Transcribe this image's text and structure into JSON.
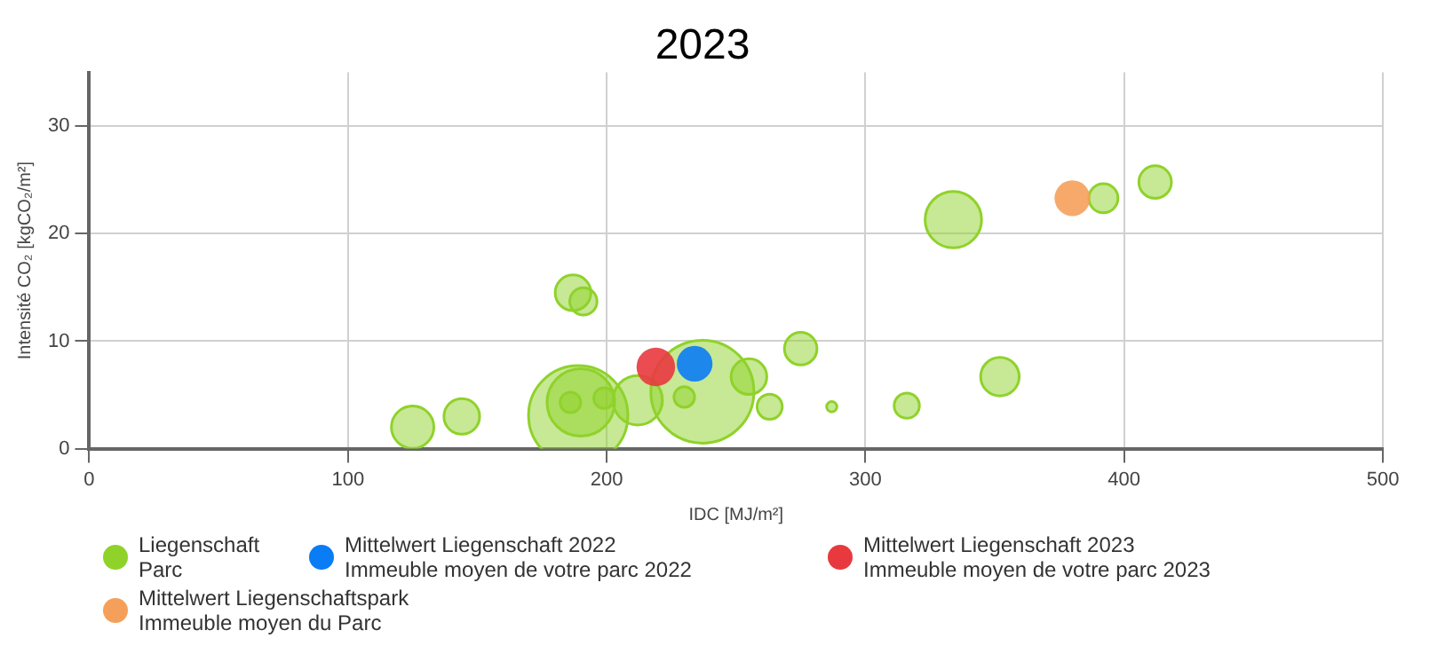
{
  "chart_data": {
    "type": "bubble",
    "title": "2023",
    "xlabel": "IDC [MJ/m²]",
    "ylabel": "Intensité CO₂ [kgCO₂/m²]",
    "xlim": [
      0,
      500
    ],
    "xticks": [
      0,
      100,
      200,
      300,
      400,
      500
    ],
    "ylim": [
      0,
      35
    ],
    "yticks": [
      0,
      10,
      20,
      30
    ],
    "grid": true,
    "legend": "bottom",
    "series": [
      {
        "name": "Liegenschaft\nParc",
        "color": "#8fd22a",
        "x": [
          125,
          144,
          187,
          191,
          189,
          190,
          186,
          199,
          212,
          237,
          230,
          255,
          263,
          287,
          275,
          316,
          352,
          334,
          392,
          412
        ],
        "values": [
          2.0,
          3.0,
          14.5,
          13.7,
          3.1,
          4.3,
          4.3,
          4.7,
          4.5,
          5.3,
          4.8,
          6.7,
          3.9,
          3.9,
          9.3,
          4.0,
          6.7,
          21.3,
          23.3,
          24.8
        ],
        "sizes": [
          0.17,
          0.12,
          0.12,
          0.07,
          0.93,
          0.43,
          0.04,
          0.04,
          0.23,
          1,
          0.04,
          0.12,
          0.06,
          0.01,
          0.1,
          0.06,
          0.14,
          0.3,
          0.08,
          0.1
        ]
      },
      {
        "name": "Mittelwert Liegenschaft 2022\nImmeuble moyen de votre parc 2022",
        "color": "#0a7cf5",
        "x": [
          234
        ],
        "values": [
          7.9
        ],
        "sizes": [
          0.12
        ]
      },
      {
        "name": "Mittelwert Liegenschaft 2023\nImmeuble moyen de votre parc 2023",
        "color": "#e8393f",
        "x": [
          219
        ],
        "values": [
          7.6
        ],
        "sizes": [
          0.14
        ]
      },
      {
        "name": "Mittelwert Liegenschaftspark\nImmeuble moyen du Parc",
        "color": "#f5a05a",
        "x": [
          380
        ],
        "values": [
          23.3
        ],
        "sizes": [
          0.12
        ]
      }
    ]
  }
}
